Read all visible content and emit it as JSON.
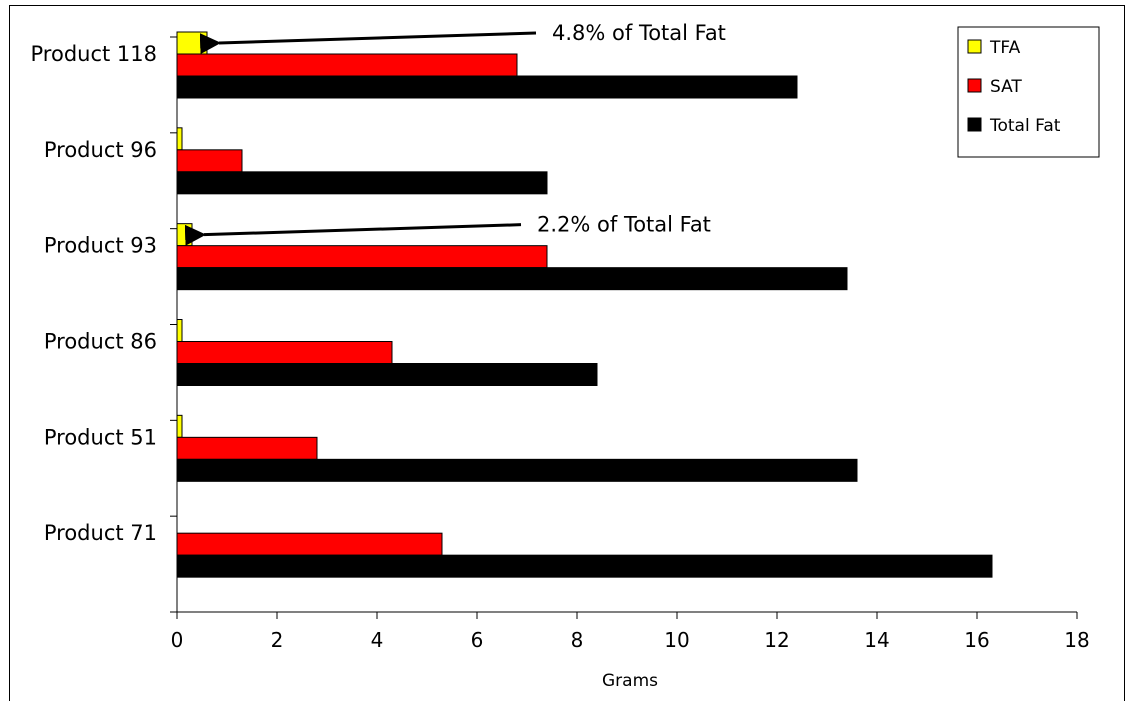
{
  "chart_data": {
    "type": "bar",
    "orientation": "horizontal",
    "categories": [
      "Product 118",
      "Product 96",
      "Product 93",
      "Product 86",
      "Product 51",
      "Product 71"
    ],
    "series": [
      {
        "name": "TFA",
        "color": "#ffff00",
        "values": [
          0.6,
          0.1,
          0.3,
          0.1,
          0.1,
          0
        ]
      },
      {
        "name": "SAT",
        "color": "#ff0000",
        "values": [
          6.8,
          1.3,
          7.4,
          4.3,
          2.8,
          5.3
        ]
      },
      {
        "name": "Total Fat",
        "color": "#000000",
        "values": [
          12.4,
          7.4,
          13.4,
          8.4,
          13.6,
          16.3
        ]
      }
    ],
    "xlabel": "Grams",
    "ylabel": "",
    "xlim": [
      0,
      18
    ],
    "x_ticks": [
      "0",
      "2",
      "4",
      "6",
      "8",
      "10",
      "12",
      "14",
      "16",
      "18"
    ],
    "grid": false,
    "legend_position": "top-right",
    "annotations": [
      {
        "text": "4.8% of Total Fat",
        "category": "Product 118",
        "series": "TFA"
      },
      {
        "text": "2.2% of Total Fat",
        "category": "Product 93",
        "series": "TFA"
      }
    ]
  }
}
